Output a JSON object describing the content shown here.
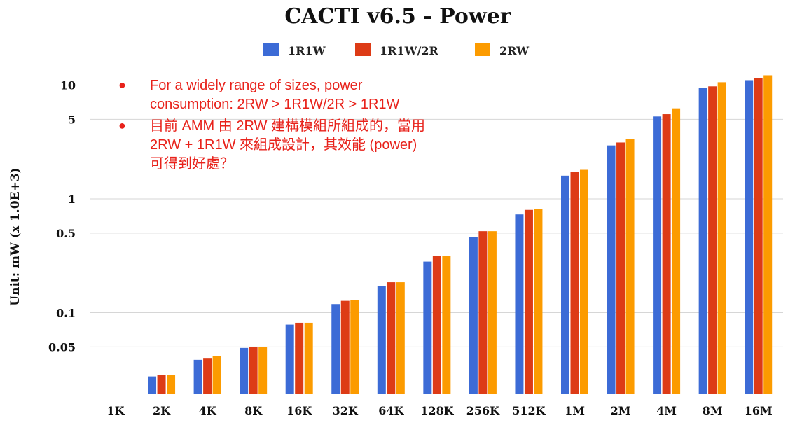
{
  "chart_data": {
    "type": "bar",
    "title": "CACTI v6.5 - Power",
    "ylabel": "Unit: mW (x 1.0E+3)",
    "xlabel": "",
    "yscale": "log",
    "ylim": [
      0.025,
      12
    ],
    "yticks": [
      {
        "value": 10,
        "label": "10"
      },
      {
        "value": 5,
        "label": "5"
      },
      {
        "value": 1,
        "label": "1"
      },
      {
        "value": 0.5,
        "label": "0.5"
      },
      {
        "value": 0.1,
        "label": "0.1"
      },
      {
        "value": 0.05,
        "label": "0.05"
      }
    ],
    "grid": true,
    "legend_position": "top-center",
    "categories": [
      "1K",
      "2K",
      "4K",
      "8K",
      "16K",
      "32K",
      "64K",
      "128K",
      "256K",
      "512K",
      "1M",
      "2M",
      "4M",
      "8M",
      "16M"
    ],
    "series": [
      {
        "name": "1R1W",
        "color": "#3c6bd6",
        "values": [
          null,
          0.0275,
          0.0385,
          0.049,
          0.0785,
          0.119,
          0.172,
          0.281,
          0.46,
          0.73,
          1.6,
          2.95,
          5.3,
          9.4,
          11.05
        ]
      },
      {
        "name": "1R1W/2R",
        "color": "#dd3b16",
        "values": [
          null,
          0.0282,
          0.04,
          0.05,
          0.0815,
          0.127,
          0.185,
          0.316,
          0.52,
          0.8,
          1.72,
          3.13,
          5.55,
          9.75,
          11.5
        ]
      },
      {
        "name": "2RW",
        "color": "#fc9b00",
        "values": [
          null,
          0.0285,
          0.0415,
          0.05,
          0.0815,
          0.129,
          0.185,
          0.316,
          0.52,
          0.82,
          1.8,
          3.35,
          6.25,
          10.6,
          12.2
        ]
      }
    ]
  },
  "notes": {
    "bullet_glyph": "●",
    "note1_line1": "For a widely range of sizes, power",
    "note1_line2": "consumption: 2RW > 1R1W/2R > 1R1W",
    "note2_line1": "目前 AMM 由 2RW 建構模組所組成的，當用",
    "note2_line2": "2RW + 1R1W 來組成設計，其效能 (power)",
    "note2_line3": "可得到好處？"
  }
}
